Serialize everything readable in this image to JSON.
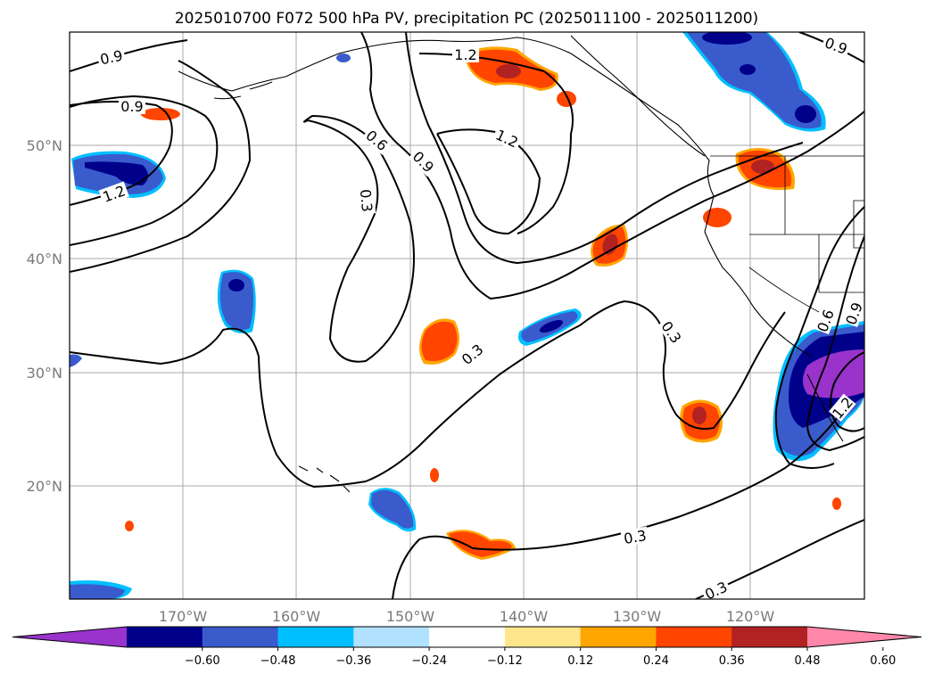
{
  "title": "2025010700 F072 500 hPa PV, precipitation PC (2025011100 - 2025011200)",
  "longitude_labels": [
    "170°W",
    "160°W",
    "150°W",
    "140°W",
    "130°W",
    "120°W"
  ],
  "latitude_labels": [
    "50°N",
    "40°N",
    "30°N",
    "20°N"
  ],
  "colorbar": {
    "colors": [
      "#9933cc",
      "#00008b",
      "#3a5bcc",
      "#00bfff",
      "#b0e2ff",
      "#ffffff",
      "#ffe68c",
      "#ffa500",
      "#ff4500",
      "#b22222",
      "#ff88aa"
    ],
    "tick_labels": [
      "−0.60",
      "−0.48",
      "−0.36",
      "−0.24",
      "−0.12",
      "0.12",
      "0.24",
      "0.36",
      "0.48",
      "0.60"
    ]
  },
  "pv_contour_labels": [
    "0.9",
    "0.9",
    "1.2",
    "1.2",
    "0.6",
    "0.9",
    "1.2",
    "0.3",
    "0.3",
    "0.3",
    "0.3",
    "0.3",
    "0.9",
    "0.6",
    "0.9",
    "1.2"
  ],
  "precip_palette": {
    "neg_strong": "#00008b",
    "neg_mid": "#3a5bcc",
    "neg_weak": "#00bfff",
    "pos_weak": "#ffa500",
    "pos_mid": "#ff4500",
    "pos_strong": "#b22222",
    "extreme_neg": "#9933cc"
  }
}
